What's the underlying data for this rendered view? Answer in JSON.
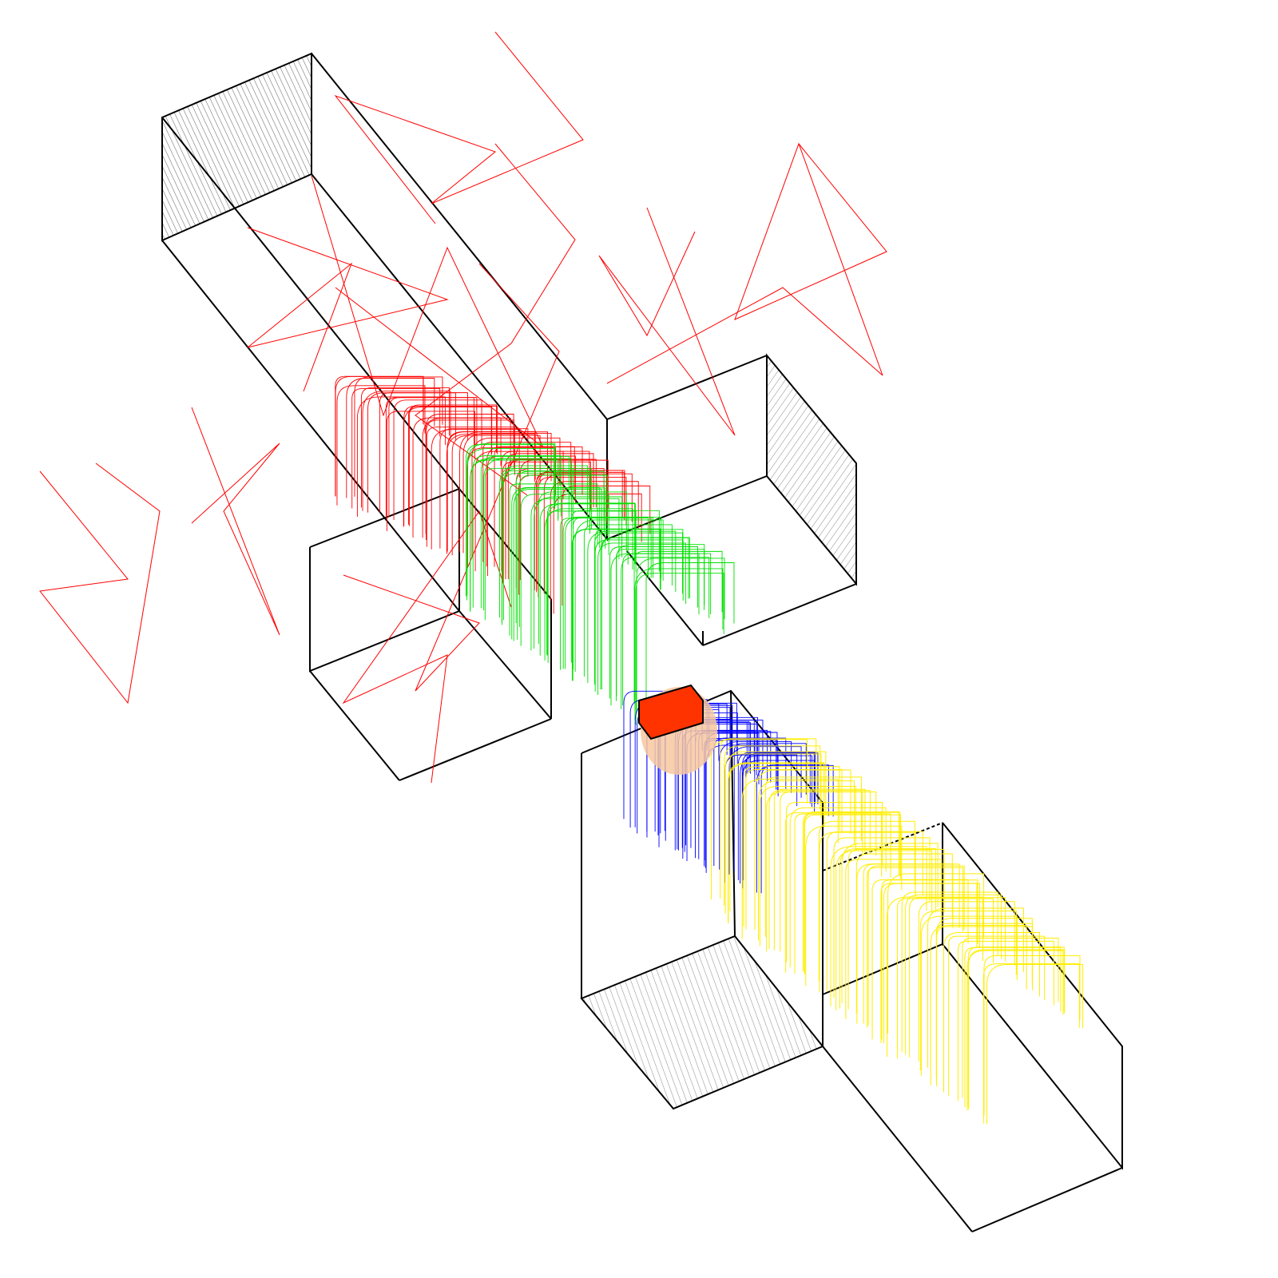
{
  "scene": {
    "colors": {
      "background": "#ffffff",
      "box_edges": "#000000",
      "trace_group_1": "#ff0000",
      "trace_group_2": "#00e000",
      "trace_group_3": "#0000ff",
      "trace_group_4": "#ffff00",
      "source_block": "#ff3300",
      "source_glow": "#f7c8a0"
    },
    "boxes": 4,
    "trace_groups": 4,
    "source_blocks": 1
  }
}
